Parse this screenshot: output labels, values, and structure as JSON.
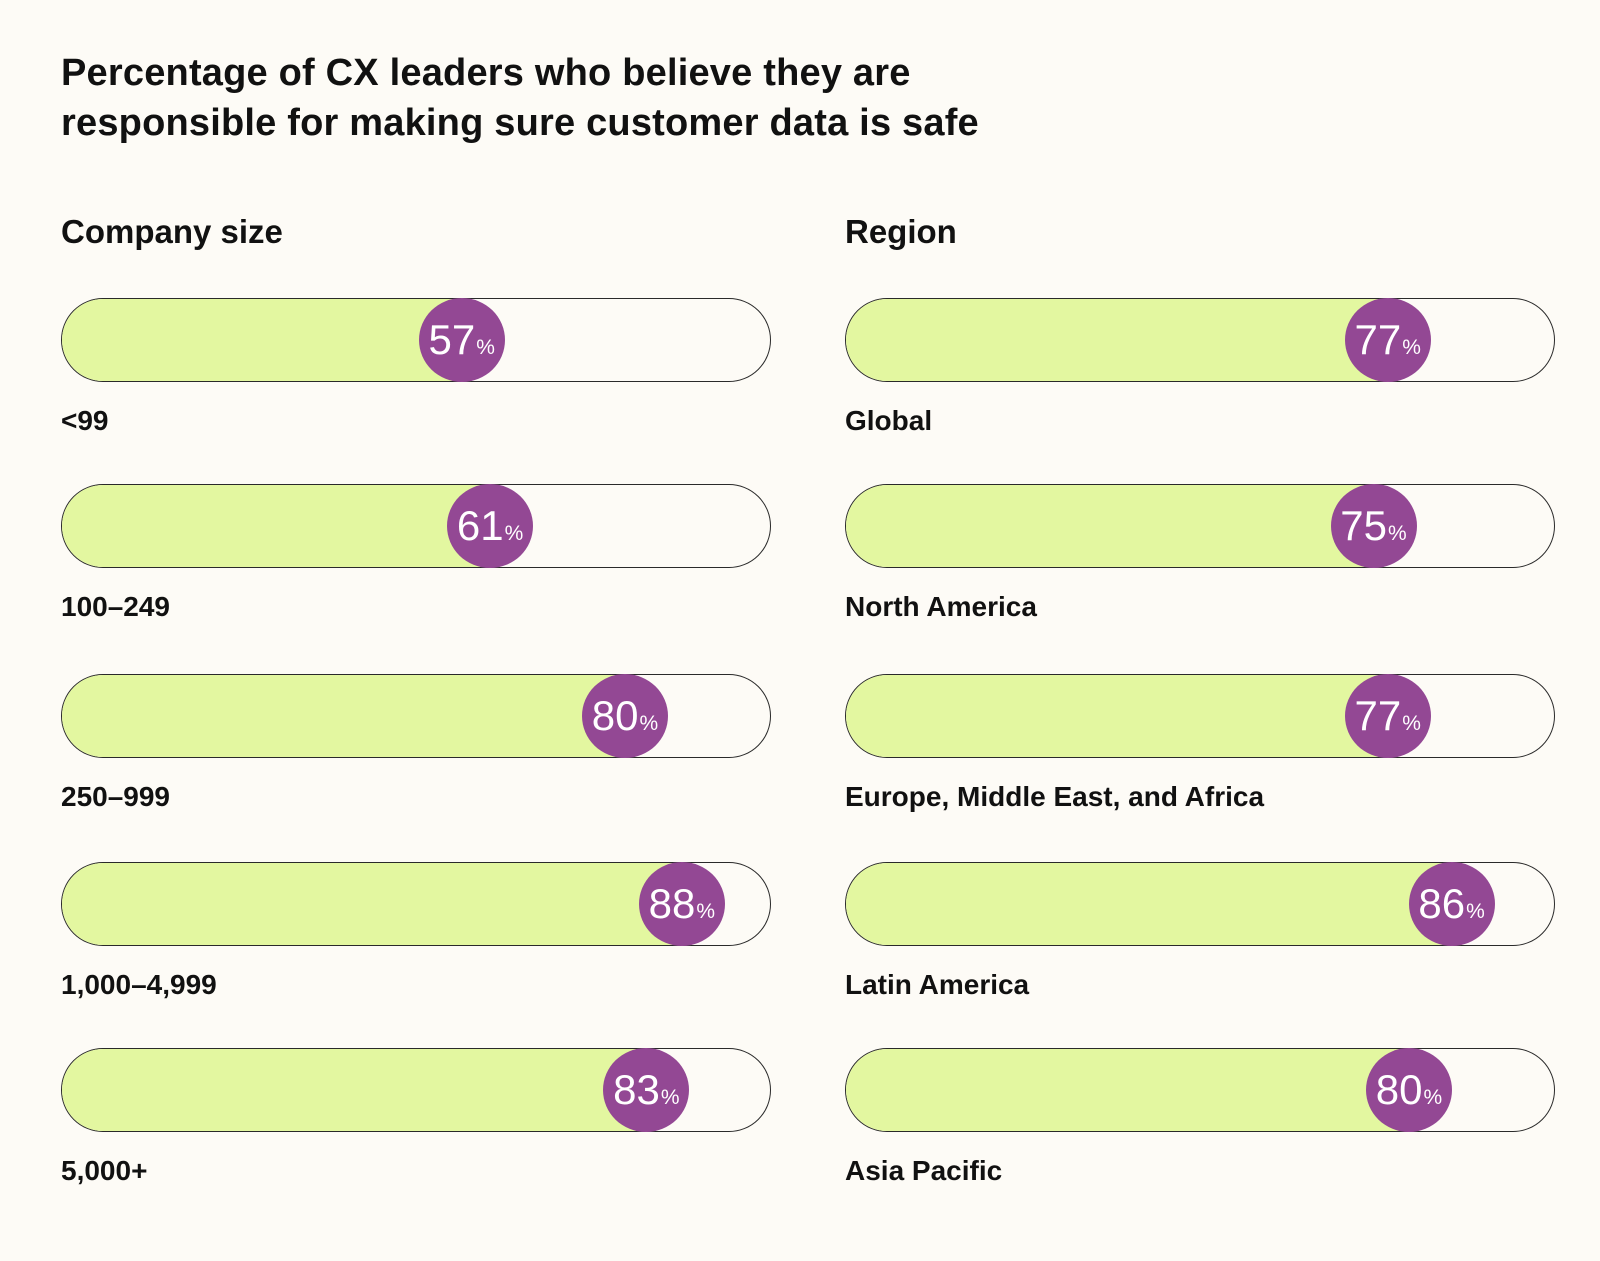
{
  "title": {
    "line1": "Percentage of CX leaders who believe they are",
    "line2": "responsible for making sure customer data is safe"
  },
  "colors": {
    "background": "#fdfbf6",
    "fill": "#e3f7a0",
    "bubble": "#934894",
    "outline": "#2a2a2a",
    "text": "#111111"
  },
  "percent_symbol": "%",
  "chart_data": [
    {
      "type": "bar",
      "orientation": "horizontal",
      "title": "Company size",
      "categories": [
        "<99",
        "100–249",
        "250–999",
        "1,000–4,999",
        "5,000+"
      ],
      "values": [
        57,
        61,
        80,
        88,
        83
      ],
      "unit": "%",
      "xlim": [
        0,
        100
      ]
    },
    {
      "type": "bar",
      "orientation": "horizontal",
      "title": "Region",
      "categories": [
        "Global",
        "North America",
        "Europe, Middle East, and Africa",
        "Latin America",
        "Asia Pacific"
      ],
      "values": [
        77,
        75,
        77,
        86,
        80
      ],
      "unit": "%",
      "xlim": [
        0,
        100
      ]
    }
  ]
}
